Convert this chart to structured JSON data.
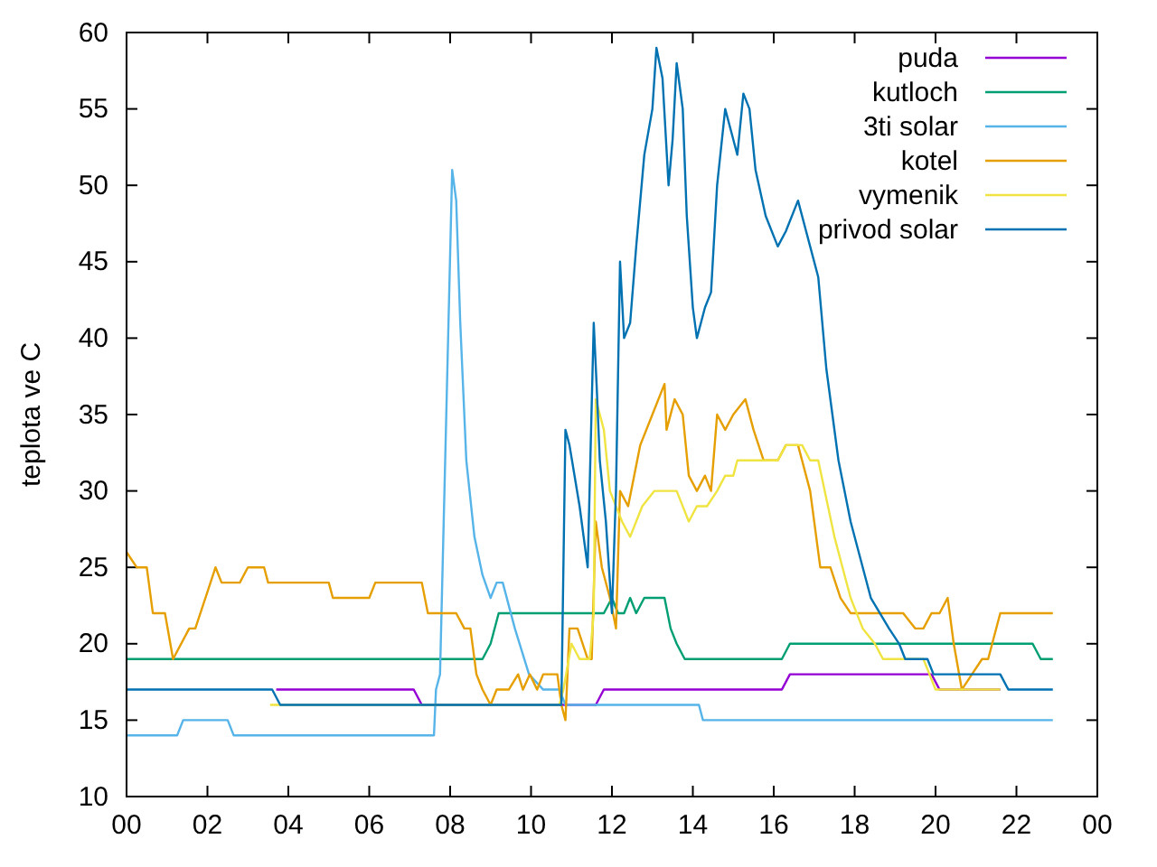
{
  "chart_data": {
    "type": "line",
    "ylabel": "teplota ve C",
    "xlim": [
      0,
      24
    ],
    "ylim": [
      10,
      60
    ],
    "xticks": [
      {
        "value": 0,
        "label": "00"
      },
      {
        "value": 2,
        "label": "02"
      },
      {
        "value": 4,
        "label": "04"
      },
      {
        "value": 6,
        "label": "06"
      },
      {
        "value": 8,
        "label": "08"
      },
      {
        "value": 10,
        "label": "10"
      },
      {
        "value": 12,
        "label": "12"
      },
      {
        "value": 14,
        "label": "14"
      },
      {
        "value": 16,
        "label": "16"
      },
      {
        "value": 18,
        "label": "18"
      },
      {
        "value": 20,
        "label": "20"
      },
      {
        "value": 22,
        "label": "22"
      },
      {
        "value": 24,
        "label": "00"
      }
    ],
    "yticks": [
      10,
      15,
      20,
      25,
      30,
      35,
      40,
      45,
      50,
      55,
      60
    ],
    "legend": "top right",
    "series": [
      {
        "name": "puda",
        "color": "#9400d3",
        "x": [
          3.7,
          7.1,
          7.3,
          11.6,
          11.8,
          16.2,
          16.4,
          19.9,
          20.1,
          21.6
        ],
        "values": [
          17,
          17,
          16,
          16,
          17,
          17,
          18,
          18,
          17,
          17
        ]
      },
      {
        "name": "kutloch",
        "color": "#009e73",
        "x": [
          0,
          8.8,
          9.0,
          9.2,
          11.8,
          12.0,
          12.15,
          12.3,
          12.45,
          12.6,
          12.8,
          13.3,
          13.45,
          13.6,
          13.8,
          16.2,
          16.4,
          22.4,
          22.6,
          22.9
        ],
        "values": [
          19,
          19,
          20,
          22,
          22,
          23,
          22,
          22,
          23,
          22,
          23,
          23,
          21,
          20,
          19,
          19,
          20,
          20,
          19,
          19
        ]
      },
      {
        "name": "3ti solar",
        "color": "#56b4e9",
        "x": [
          0,
          1.25,
          1.4,
          2.5,
          2.65,
          7.6,
          7.65,
          7.75,
          8.05,
          8.15,
          8.25,
          8.4,
          8.6,
          8.8,
          9.0,
          9.15,
          9.3,
          9.6,
          9.95,
          10.3,
          10.7,
          10.85,
          14.15,
          14.25,
          22.9
        ],
        "values": [
          14,
          14,
          15,
          15,
          14,
          14,
          17,
          18,
          51,
          49,
          41,
          32,
          27,
          24.5,
          23,
          24,
          24,
          21,
          18,
          17,
          17,
          16,
          16,
          15,
          15
        ]
      },
      {
        "name": "kotel",
        "color": "#e69f00",
        "x": [
          0,
          0.25,
          0.5,
          0.65,
          0.95,
          1.15,
          1.55,
          1.7,
          1.95,
          2.2,
          2.35,
          2.8,
          3.0,
          3.4,
          3.5,
          5.0,
          5.1,
          6.0,
          6.15,
          7.3,
          7.45,
          8.15,
          8.35,
          8.5,
          8.65,
          8.8,
          9.0,
          9.15,
          9.45,
          9.68,
          9.8,
          9.97,
          10.15,
          10.3,
          10.65,
          10.75,
          10.85,
          10.95,
          11.15,
          11.4,
          11.5,
          11.6,
          11.75,
          11.95,
          12.1,
          12.2,
          12.4,
          12.7,
          13.0,
          13.3,
          13.35,
          13.55,
          13.75,
          13.9,
          14.1,
          14.3,
          14.45,
          14.6,
          14.8,
          15.0,
          15.3,
          15.5,
          15.75,
          16.1,
          16.3,
          16.6,
          16.9,
          17.15,
          17.4,
          17.65,
          17.9,
          18.75,
          19.2,
          19.5,
          19.7,
          19.9,
          20.1,
          20.3,
          20.45,
          20.65,
          20.9,
          21.15,
          21.3,
          21.6,
          22.9
        ],
        "values": [
          26,
          25,
          25,
          22,
          22,
          19,
          21,
          21,
          23,
          25,
          24,
          24,
          25,
          25,
          24,
          24,
          23,
          23,
          24,
          24,
          22,
          22,
          21,
          21,
          18,
          17,
          16,
          17,
          17,
          18,
          17,
          18,
          17,
          18,
          18,
          16,
          15,
          21,
          21,
          19,
          19,
          28,
          25,
          23,
          21,
          30,
          29,
          33,
          35,
          37,
          34,
          36,
          35,
          31,
          30,
          31,
          30,
          35,
          34,
          35,
          36,
          34,
          32,
          32,
          33,
          33,
          30,
          25,
          25,
          23,
          22,
          22,
          22,
          21,
          21,
          22,
          22,
          23,
          20,
          17,
          18,
          19,
          19,
          22,
          22
        ]
      },
      {
        "name": "vymenik",
        "color": "#f0e442",
        "x": [
          3.55,
          10.7,
          10.8,
          11.0,
          11.2,
          11.45,
          11.55,
          11.6,
          11.8,
          11.95,
          12.25,
          12.45,
          12.75,
          13.05,
          13.3,
          13.6,
          13.9,
          14.1,
          14.35,
          14.6,
          14.8,
          15.0,
          15.1,
          16.1,
          16.3,
          16.7,
          16.9,
          17.1,
          17.5,
          17.7,
          17.9,
          18.2,
          18.5,
          18.7,
          19.7,
          19.85,
          20.0,
          21.6
        ],
        "values": [
          16,
          16,
          17,
          20,
          19,
          19,
          22,
          36,
          34,
          30,
          28,
          27,
          29,
          30,
          30,
          30,
          28,
          29,
          29,
          30,
          31,
          31,
          32,
          32,
          33,
          33,
          32,
          32,
          27,
          25,
          23,
          21,
          20,
          19,
          19,
          18,
          17,
          17
        ]
      },
      {
        "name": "privod solar",
        "color": "#0072b2",
        "x": [
          0,
          3.6,
          3.8,
          10.75,
          10.85,
          10.95,
          11.2,
          11.4,
          11.55,
          11.62,
          11.7,
          11.85,
          12.0,
          12.1,
          12.2,
          12.3,
          12.45,
          12.6,
          12.8,
          13.0,
          13.1,
          13.25,
          13.4,
          13.5,
          13.6,
          13.75,
          13.85,
          14.0,
          14.1,
          14.3,
          14.45,
          14.6,
          14.8,
          15.0,
          15.1,
          15.25,
          15.4,
          15.55,
          15.8,
          16.1,
          16.3,
          16.6,
          16.9,
          17.1,
          17.3,
          17.6,
          17.9,
          18.2,
          18.4,
          18.85,
          19.1,
          19.25,
          19.8,
          19.95,
          21.6,
          21.8,
          22.9
        ],
        "values": [
          17,
          17,
          16,
          16,
          34,
          33,
          29,
          25,
          41,
          37,
          32,
          28,
          22,
          30,
          45,
          40,
          41,
          46,
          52,
          55,
          59,
          57,
          50,
          53,
          58,
          55,
          48,
          42,
          40,
          42,
          43,
          50,
          55,
          53,
          52,
          56,
          55,
          51,
          48,
          46,
          47,
          49,
          46,
          44,
          38,
          32,
          28,
          25,
          23,
          21,
          20,
          19,
          19,
          18,
          18,
          17,
          17
        ]
      }
    ]
  }
}
